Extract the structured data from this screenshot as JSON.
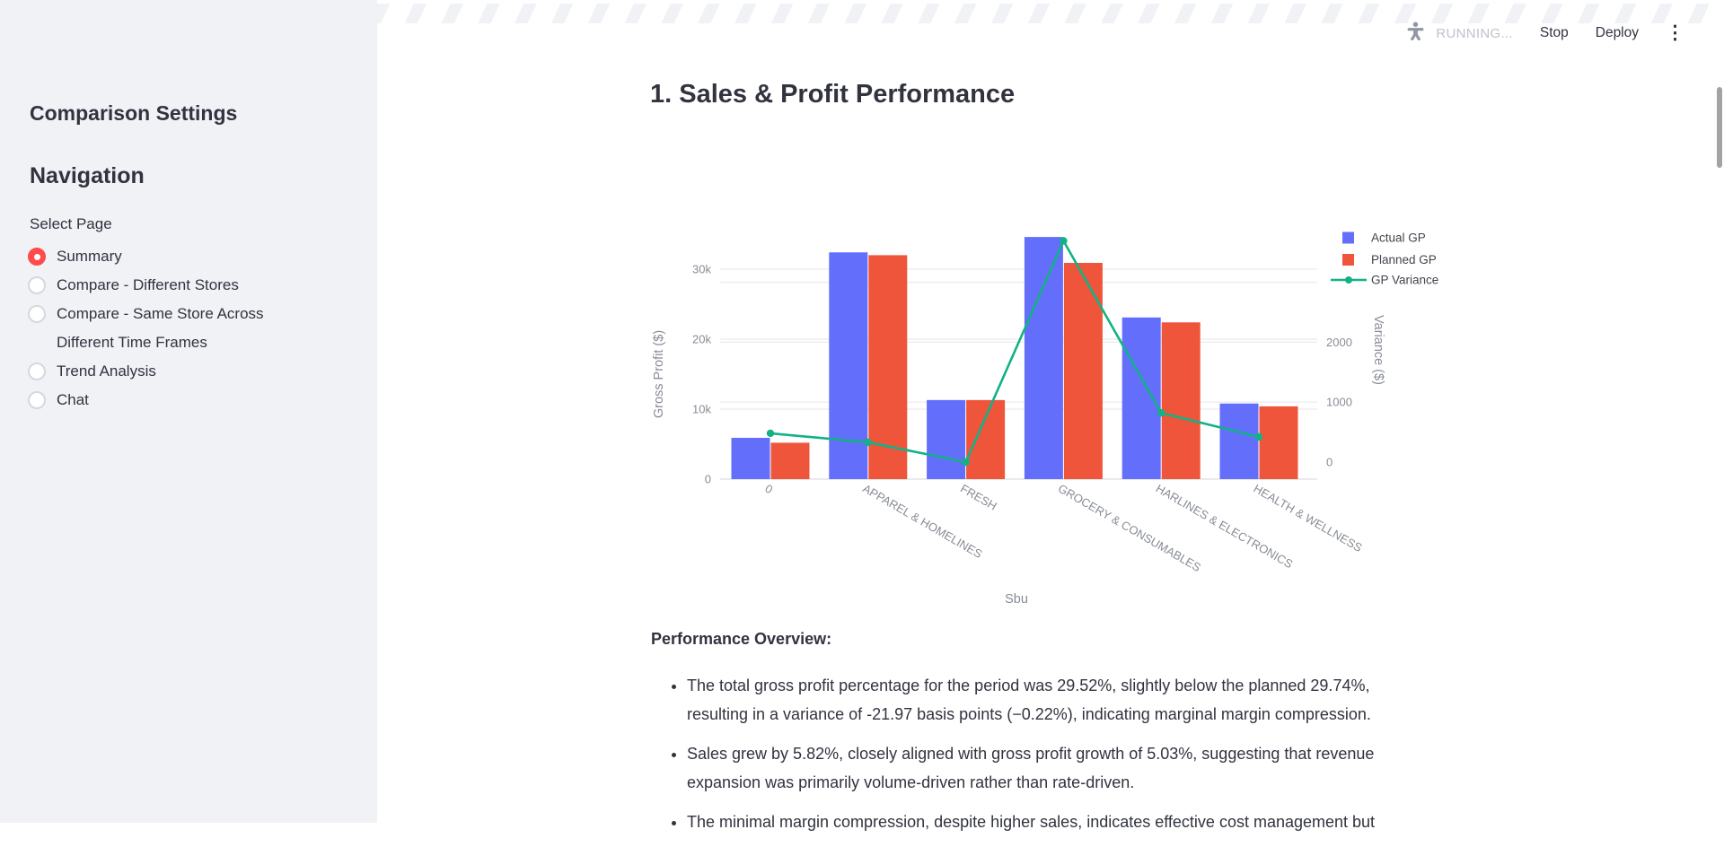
{
  "toolbar": {
    "status": "RUNNING...",
    "stop_label": "Stop",
    "deploy_label": "Deploy",
    "kebab_glyph": "⋮"
  },
  "sidebar": {
    "title": "Comparison Settings",
    "nav_heading": "Navigation",
    "select_label": "Select Page",
    "options": [
      {
        "label": "Summary",
        "selected": true
      },
      {
        "label": "Compare - Different Stores",
        "selected": false
      },
      {
        "label": "Compare - Same Store Across Different Time Frames",
        "selected": false
      },
      {
        "label": "Trend Analysis",
        "selected": false
      },
      {
        "label": "Chat",
        "selected": false
      }
    ],
    "selected_color": "#ff4b4b"
  },
  "main": {
    "heading": "1. Sales & Profit Performance",
    "overview_title": "Performance Overview:",
    "bullets": [
      "The total gross profit percentage for the period was 29.52%, slightly below the planned 29.74%, resulting in a variance of -21.97 basis points (−0.22%), indicating marginal margin compression.",
      "Sales grew by 5.82%, closely aligned with gross profit growth of 5.03%, suggesting that revenue expansion was primarily volume-driven rather than rate-driven.",
      "The minimal margin compression, despite higher sales, indicates effective cost management but"
    ]
  },
  "chart_data": {
    "type": "bar",
    "subtype": "grouped bars + line on secondary axis",
    "categories": [
      "0",
      "APPAREL & HOMELINES",
      "FRESH",
      "GROCERY & CONSUMABLES",
      "HARLINES & ELECTRONICS",
      "HEALTH & WELLNESS"
    ],
    "series": [
      {
        "name": "Actual GP",
        "type": "bar",
        "axis": "left",
        "color": "#636EFA",
        "values": [
          5900,
          32400,
          11300,
          34600,
          23100,
          10800
        ]
      },
      {
        "name": "Planned GP",
        "type": "bar",
        "axis": "left",
        "color": "#EF553B",
        "values": [
          5200,
          32000,
          11300,
          30900,
          22400,
          10400
        ]
      },
      {
        "name": "GP Variance",
        "type": "line",
        "axis": "right",
        "color": "#12B286",
        "values": [
          480,
          330,
          0,
          3690,
          820,
          420
        ]
      }
    ],
    "xlabel": "Sbu",
    "ylabel_left": "Gross Profit ($)",
    "ylabel_right": "Variance ($)",
    "left_axis": {
      "range": [
        0,
        36500
      ],
      "tick_labels": [
        "0",
        "10k",
        "20k",
        "30k"
      ],
      "tick_values": [
        0,
        10000,
        20000,
        30000
      ]
    },
    "right_axis": {
      "range": [
        0,
        4300
      ],
      "tick_labels": [
        "0",
        "1000",
        "2000"
      ],
      "tick_values": [
        0,
        1000,
        2000
      ],
      "grid_values": [
        1000,
        2000,
        3000
      ]
    },
    "grid": true,
    "grid_color": "#e9eaee",
    "tick_color": "#888c96",
    "legend_position": "top-right",
    "legend_text_color": "#42454d"
  }
}
